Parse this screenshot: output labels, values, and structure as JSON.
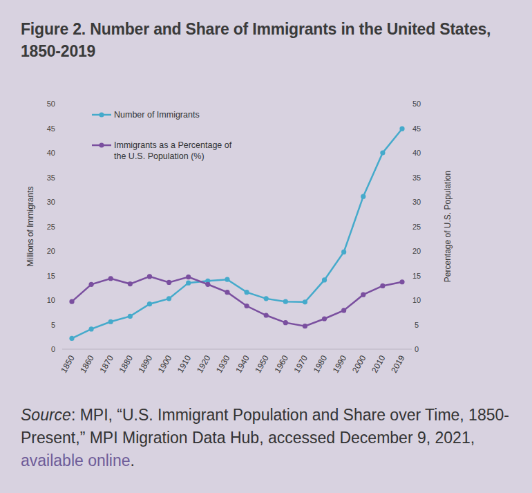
{
  "chart_data": {
    "type": "line",
    "title": "Figure 2. Number and Share of Immigrants in the United States, 1850-2019",
    "ylabel": "Millions of Immigrants",
    "y2label": "Percentage of U.S. Population",
    "categories": [
      "1850",
      "1860",
      "1870",
      "1880",
      "1890",
      "1900",
      "1910",
      "1920",
      "1930",
      "1940",
      "1950",
      "1960",
      "1970",
      "1980",
      "1990",
      "2000",
      "2010",
      "2019"
    ],
    "series": [
      {
        "name": "Number of Immigrants",
        "color": "#45aacb",
        "marker": "circle",
        "values": [
          2.2,
          4.1,
          5.6,
          6.7,
          9.2,
          10.3,
          13.5,
          13.9,
          14.2,
          11.6,
          10.3,
          9.7,
          9.6,
          14.1,
          19.8,
          31.1,
          40.0,
          44.9
        ]
      },
      {
        "name": "Immigrants as a Percentage of the U.S. Population (%)",
        "color": "#7a4f9f",
        "marker": "circle",
        "axis": "y2",
        "values": [
          9.7,
          13.2,
          14.4,
          13.3,
          14.8,
          13.6,
          14.7,
          13.2,
          11.6,
          8.8,
          6.9,
          5.4,
          4.7,
          6.2,
          7.9,
          11.1,
          12.9,
          13.7
        ]
      }
    ],
    "ylim": [
      0,
      50
    ],
    "yticks": [
      0,
      5,
      10,
      15,
      20,
      25,
      30,
      35,
      40,
      45,
      50
    ],
    "y2lim": [
      0,
      50
    ],
    "y2ticks": [
      0,
      5,
      10,
      15,
      20,
      25,
      30,
      35,
      40,
      45,
      50
    ],
    "grid": false,
    "legend": "top-left",
    "source": {
      "label": "Source",
      "text": ": MPI, “U.S. Immigrant Population and Share over Time, 1850-Present,” MPI Migration Data Hub, accessed December 9, 2021, ",
      "link": "available online",
      "end": "."
    }
  }
}
